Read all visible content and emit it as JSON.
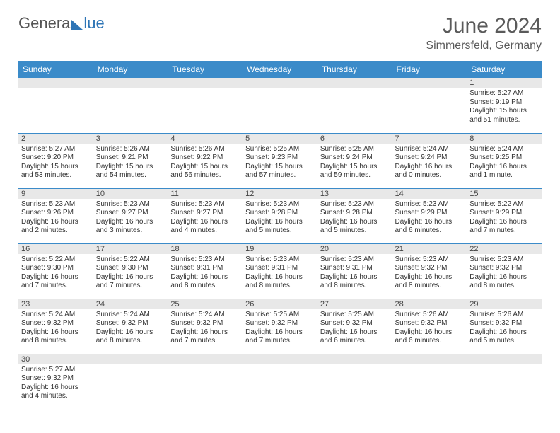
{
  "logo": {
    "text1": "Genera",
    "text2": "lue"
  },
  "header": {
    "title": "June 2024",
    "location": "Simmersfeld, Germany"
  },
  "colors": {
    "header_bg": "#3b8bc9",
    "stripe": "#e8e8e8",
    "rule": "#3b8bc9"
  },
  "weekdays": [
    "Sunday",
    "Monday",
    "Tuesday",
    "Wednesday",
    "Thursday",
    "Friday",
    "Saturday"
  ],
  "weeks": [
    [
      null,
      null,
      null,
      null,
      null,
      null,
      {
        "d": "1",
        "sunrise": "Sunrise: 5:27 AM",
        "sunset": "Sunset: 9:19 PM",
        "daylight": "Daylight: 15 hours and 51 minutes."
      }
    ],
    [
      {
        "d": "2",
        "sunrise": "Sunrise: 5:27 AM",
        "sunset": "Sunset: 9:20 PM",
        "daylight": "Daylight: 15 hours and 53 minutes."
      },
      {
        "d": "3",
        "sunrise": "Sunrise: 5:26 AM",
        "sunset": "Sunset: 9:21 PM",
        "daylight": "Daylight: 15 hours and 54 minutes."
      },
      {
        "d": "4",
        "sunrise": "Sunrise: 5:26 AM",
        "sunset": "Sunset: 9:22 PM",
        "daylight": "Daylight: 15 hours and 56 minutes."
      },
      {
        "d": "5",
        "sunrise": "Sunrise: 5:25 AM",
        "sunset": "Sunset: 9:23 PM",
        "daylight": "Daylight: 15 hours and 57 minutes."
      },
      {
        "d": "6",
        "sunrise": "Sunrise: 5:25 AM",
        "sunset": "Sunset: 9:24 PM",
        "daylight": "Daylight: 15 hours and 59 minutes."
      },
      {
        "d": "7",
        "sunrise": "Sunrise: 5:24 AM",
        "sunset": "Sunset: 9:24 PM",
        "daylight": "Daylight: 16 hours and 0 minutes."
      },
      {
        "d": "8",
        "sunrise": "Sunrise: 5:24 AM",
        "sunset": "Sunset: 9:25 PM",
        "daylight": "Daylight: 16 hours and 1 minute."
      }
    ],
    [
      {
        "d": "9",
        "sunrise": "Sunrise: 5:23 AM",
        "sunset": "Sunset: 9:26 PM",
        "daylight": "Daylight: 16 hours and 2 minutes."
      },
      {
        "d": "10",
        "sunrise": "Sunrise: 5:23 AM",
        "sunset": "Sunset: 9:27 PM",
        "daylight": "Daylight: 16 hours and 3 minutes."
      },
      {
        "d": "11",
        "sunrise": "Sunrise: 5:23 AM",
        "sunset": "Sunset: 9:27 PM",
        "daylight": "Daylight: 16 hours and 4 minutes."
      },
      {
        "d": "12",
        "sunrise": "Sunrise: 5:23 AM",
        "sunset": "Sunset: 9:28 PM",
        "daylight": "Daylight: 16 hours and 5 minutes."
      },
      {
        "d": "13",
        "sunrise": "Sunrise: 5:23 AM",
        "sunset": "Sunset: 9:28 PM",
        "daylight": "Daylight: 16 hours and 5 minutes."
      },
      {
        "d": "14",
        "sunrise": "Sunrise: 5:23 AM",
        "sunset": "Sunset: 9:29 PM",
        "daylight": "Daylight: 16 hours and 6 minutes."
      },
      {
        "d": "15",
        "sunrise": "Sunrise: 5:22 AM",
        "sunset": "Sunset: 9:29 PM",
        "daylight": "Daylight: 16 hours and 7 minutes."
      }
    ],
    [
      {
        "d": "16",
        "sunrise": "Sunrise: 5:22 AM",
        "sunset": "Sunset: 9:30 PM",
        "daylight": "Daylight: 16 hours and 7 minutes."
      },
      {
        "d": "17",
        "sunrise": "Sunrise: 5:22 AM",
        "sunset": "Sunset: 9:30 PM",
        "daylight": "Daylight: 16 hours and 7 minutes."
      },
      {
        "d": "18",
        "sunrise": "Sunrise: 5:23 AM",
        "sunset": "Sunset: 9:31 PM",
        "daylight": "Daylight: 16 hours and 8 minutes."
      },
      {
        "d": "19",
        "sunrise": "Sunrise: 5:23 AM",
        "sunset": "Sunset: 9:31 PM",
        "daylight": "Daylight: 16 hours and 8 minutes."
      },
      {
        "d": "20",
        "sunrise": "Sunrise: 5:23 AM",
        "sunset": "Sunset: 9:31 PM",
        "daylight": "Daylight: 16 hours and 8 minutes."
      },
      {
        "d": "21",
        "sunrise": "Sunrise: 5:23 AM",
        "sunset": "Sunset: 9:32 PM",
        "daylight": "Daylight: 16 hours and 8 minutes."
      },
      {
        "d": "22",
        "sunrise": "Sunrise: 5:23 AM",
        "sunset": "Sunset: 9:32 PM",
        "daylight": "Daylight: 16 hours and 8 minutes."
      }
    ],
    [
      {
        "d": "23",
        "sunrise": "Sunrise: 5:24 AM",
        "sunset": "Sunset: 9:32 PM",
        "daylight": "Daylight: 16 hours and 8 minutes."
      },
      {
        "d": "24",
        "sunrise": "Sunrise: 5:24 AM",
        "sunset": "Sunset: 9:32 PM",
        "daylight": "Daylight: 16 hours and 8 minutes."
      },
      {
        "d": "25",
        "sunrise": "Sunrise: 5:24 AM",
        "sunset": "Sunset: 9:32 PM",
        "daylight": "Daylight: 16 hours and 7 minutes."
      },
      {
        "d": "26",
        "sunrise": "Sunrise: 5:25 AM",
        "sunset": "Sunset: 9:32 PM",
        "daylight": "Daylight: 16 hours and 7 minutes."
      },
      {
        "d": "27",
        "sunrise": "Sunrise: 5:25 AM",
        "sunset": "Sunset: 9:32 PM",
        "daylight": "Daylight: 16 hours and 6 minutes."
      },
      {
        "d": "28",
        "sunrise": "Sunrise: 5:26 AM",
        "sunset": "Sunset: 9:32 PM",
        "daylight": "Daylight: 16 hours and 6 minutes."
      },
      {
        "d": "29",
        "sunrise": "Sunrise: 5:26 AM",
        "sunset": "Sunset: 9:32 PM",
        "daylight": "Daylight: 16 hours and 5 minutes."
      }
    ],
    [
      {
        "d": "30",
        "sunrise": "Sunrise: 5:27 AM",
        "sunset": "Sunset: 9:32 PM",
        "daylight": "Daylight: 16 hours and 4 minutes."
      },
      null,
      null,
      null,
      null,
      null,
      null
    ]
  ]
}
